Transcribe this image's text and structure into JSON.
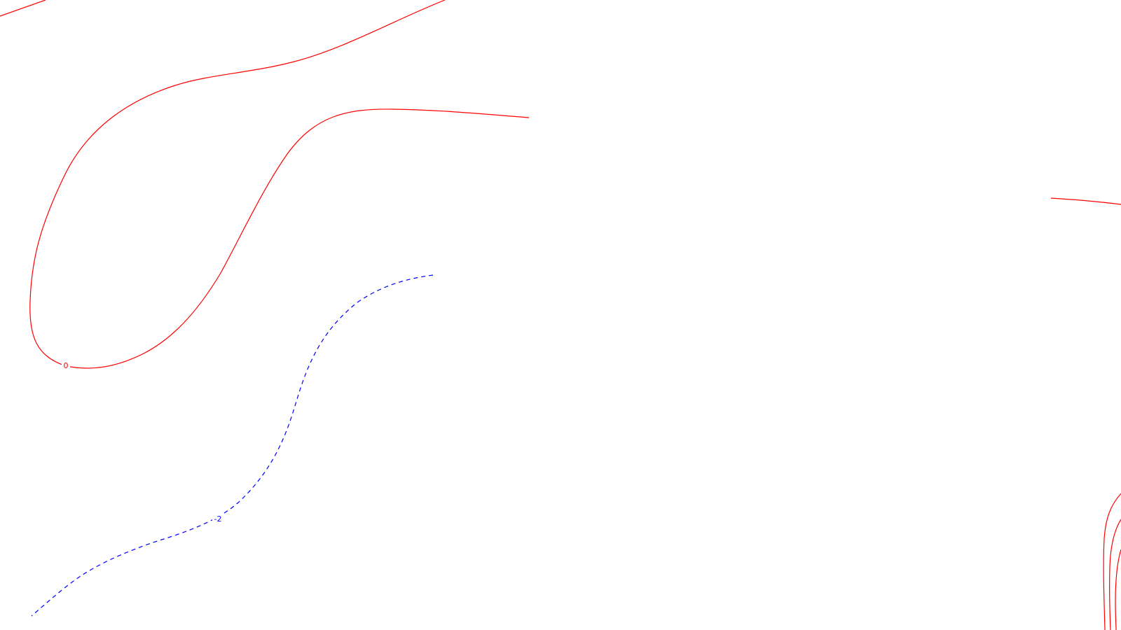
{
  "map": {
    "background": "#ffffff",
    "colors": {
      "positive_contour": "#ff0000",
      "negative_contour": "#0000ff"
    },
    "contours": [
      {
        "id": "zero-contour",
        "level_label": "0",
        "style": "solid",
        "color": "#ff0000"
      },
      {
        "id": "minus-two-contour",
        "level_label": "-2",
        "style": "dashed",
        "color": "#0000ff"
      }
    ]
  }
}
